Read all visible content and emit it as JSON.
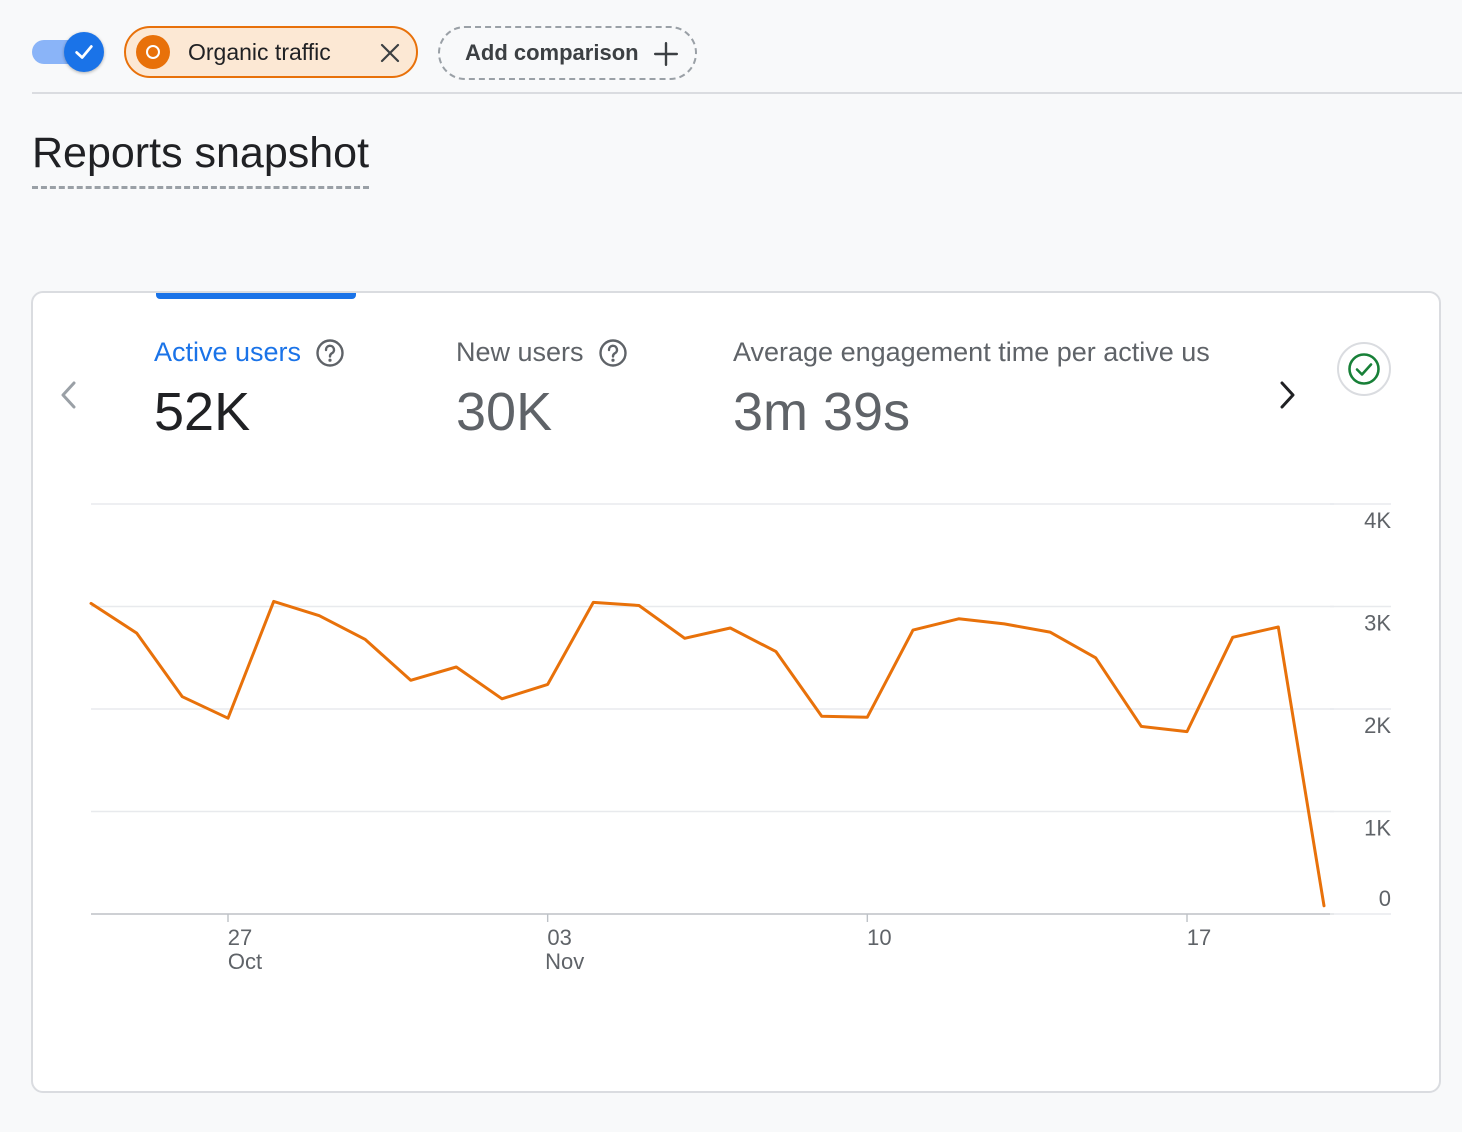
{
  "toolbar": {
    "toggle_on": true,
    "segment_chip": {
      "label": "Organic traffic",
      "color": "#e8710a"
    },
    "add_comparison_label": "Add comparison"
  },
  "page": {
    "title": "Reports snapshot"
  },
  "card": {
    "metrics": [
      {
        "label": "Active users",
        "value": "52K",
        "selected": true
      },
      {
        "label": "New users",
        "value": "30K",
        "selected": false
      },
      {
        "label": "Average engagement time per active us",
        "value": "3m 39s",
        "selected": false
      }
    ]
  },
  "chart_data": {
    "type": "line",
    "title": "",
    "xlabel": "",
    "ylabel": "",
    "ylim": [
      0,
      4000
    ],
    "grid": true,
    "y_ticks": [
      "4K",
      "3K",
      "2K",
      "1K",
      "0"
    ],
    "x_ticks": [
      {
        "day": "27",
        "month": "Oct"
      },
      {
        "day": "03",
        "month": "Nov"
      },
      {
        "day": "10",
        "month": ""
      },
      {
        "day": "17",
        "month": ""
      }
    ],
    "x": [
      "Oct 24",
      "Oct 25",
      "Oct 26",
      "Oct 27",
      "Oct 28",
      "Oct 29",
      "Oct 30",
      "Oct 31",
      "Nov 01",
      "Nov 02",
      "Nov 03",
      "Nov 04",
      "Nov 05",
      "Nov 06",
      "Nov 07",
      "Nov 08",
      "Nov 09",
      "Nov 10",
      "Nov 11",
      "Nov 12",
      "Nov 13",
      "Nov 14",
      "Nov 15",
      "Nov 16",
      "Nov 17",
      "Nov 18",
      "Nov 19",
      "Nov 20"
    ],
    "series": [
      {
        "name": "Organic traffic",
        "color": "#e8710a",
        "values": [
          3030,
          2740,
          2120,
          1910,
          3050,
          2910,
          2680,
          2280,
          2410,
          2100,
          2240,
          3040,
          3010,
          2690,
          2790,
          2560,
          1930,
          1920,
          2770,
          2880,
          2830,
          2750,
          2500,
          1830,
          1780,
          2700,
          2800,
          80
        ]
      }
    ]
  }
}
